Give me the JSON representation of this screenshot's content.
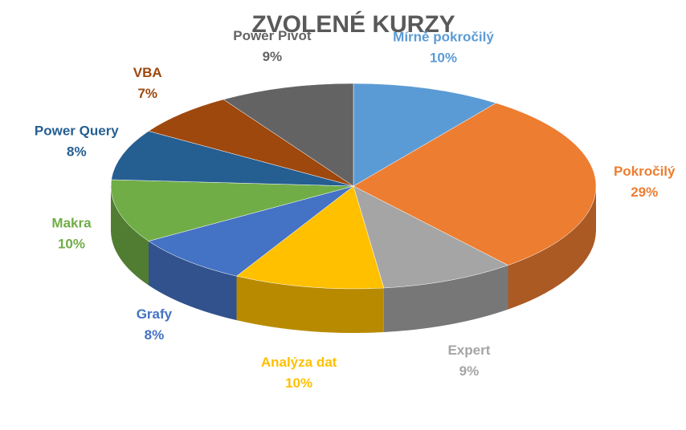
{
  "chart_data": {
    "type": "pie",
    "title": "ZVOLENÉ KURZY",
    "categories": [
      "Mírně pokročilý",
      "Pokročilý",
      "Expert",
      "Analýza dat",
      "Grafy",
      "Makra",
      "Power Query",
      "VBA",
      "Power Pivot"
    ],
    "values": [
      10,
      29,
      9,
      10,
      8,
      10,
      8,
      7,
      9
    ],
    "value_labels": [
      "10%",
      "29%",
      "9%",
      "10%",
      "8%",
      "10%",
      "8%",
      "7%",
      "9%"
    ],
    "colors": [
      "#5b9bd5",
      "#ed7d31",
      "#a5a5a5",
      "#ffc000",
      "#4472c4",
      "#70ad47",
      "#255e91",
      "#9e480e",
      "#636363"
    ]
  }
}
